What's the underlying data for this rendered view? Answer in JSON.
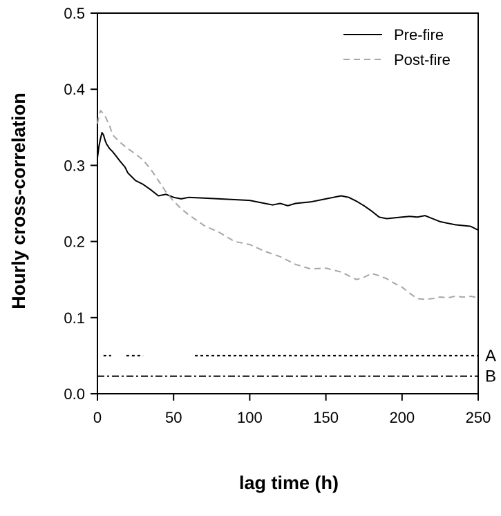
{
  "chart_data": {
    "type": "line",
    "title": "",
    "xlabel": "lag time (h)",
    "ylabel": "Hourly cross-correlation",
    "xlim": [
      0,
      250
    ],
    "ylim": [
      0,
      0.5
    ],
    "x_ticks": [
      0,
      50,
      100,
      150,
      200,
      250
    ],
    "y_ticks": [
      0.0,
      0.1,
      0.2,
      0.3,
      0.4,
      0.5
    ],
    "x_tick_labels": [
      "0",
      "50",
      "100",
      "150",
      "200",
      "250"
    ],
    "y_tick_labels": [
      "0.0",
      "0.1",
      "0.2",
      "0.3",
      "0.4",
      "0.5"
    ],
    "grid": false,
    "legend_position": "top-right",
    "series": [
      {
        "name": "Pre-fire",
        "style": "solid",
        "color": "#000000",
        "x": [
          0,
          1,
          2,
          3,
          4,
          5,
          6,
          8,
          10,
          12,
          15,
          18,
          20,
          25,
          30,
          35,
          40,
          45,
          50,
          55,
          60,
          70,
          80,
          90,
          100,
          110,
          115,
          120,
          125,
          130,
          140,
          150,
          155,
          160,
          165,
          170,
          175,
          180,
          185,
          190,
          195,
          200,
          205,
          210,
          215,
          220,
          225,
          230,
          235,
          240,
          245,
          250
        ],
        "y": [
          0.31,
          0.325,
          0.335,
          0.343,
          0.34,
          0.333,
          0.328,
          0.322,
          0.318,
          0.313,
          0.305,
          0.298,
          0.29,
          0.28,
          0.275,
          0.268,
          0.26,
          0.262,
          0.258,
          0.256,
          0.258,
          0.257,
          0.256,
          0.255,
          0.254,
          0.25,
          0.248,
          0.25,
          0.247,
          0.25,
          0.252,
          0.256,
          0.258,
          0.26,
          0.258,
          0.253,
          0.247,
          0.24,
          0.232,
          0.23,
          0.231,
          0.232,
          0.233,
          0.232,
          0.234,
          0.23,
          0.226,
          0.224,
          0.222,
          0.221,
          0.22,
          0.215
        ]
      },
      {
        "name": "Post-fire",
        "style": "dashed",
        "color": "#a6a6a6",
        "x": [
          0,
          1,
          2,
          3,
          5,
          8,
          10,
          15,
          20,
          25,
          30,
          35,
          40,
          45,
          50,
          55,
          60,
          65,
          70,
          80,
          90,
          100,
          110,
          120,
          130,
          140,
          150,
          160,
          165,
          170,
          175,
          180,
          185,
          190,
          195,
          200,
          205,
          210,
          215,
          220,
          225,
          230,
          235,
          240,
          245,
          250
        ],
        "y": [
          0.355,
          0.365,
          0.372,
          0.37,
          0.365,
          0.352,
          0.34,
          0.33,
          0.322,
          0.315,
          0.307,
          0.295,
          0.28,
          0.265,
          0.253,
          0.243,
          0.235,
          0.228,
          0.221,
          0.212,
          0.2,
          0.196,
          0.187,
          0.18,
          0.17,
          0.164,
          0.165,
          0.16,
          0.155,
          0.15,
          0.153,
          0.158,
          0.155,
          0.151,
          0.145,
          0.14,
          0.132,
          0.125,
          0.124,
          0.125,
          0.127,
          0.126,
          0.128,
          0.127,
          0.128,
          0.126
        ]
      }
    ],
    "reference_lines": [
      {
        "label": "A",
        "y": 0.05,
        "style": "dotted",
        "segments": [
          [
            4,
            9
          ],
          [
            19,
            30
          ],
          [
            64,
            250
          ]
        ]
      },
      {
        "label": "B",
        "y": 0.023,
        "style": "dash-dot",
        "segments": [
          [
            0,
            250
          ]
        ]
      }
    ]
  }
}
